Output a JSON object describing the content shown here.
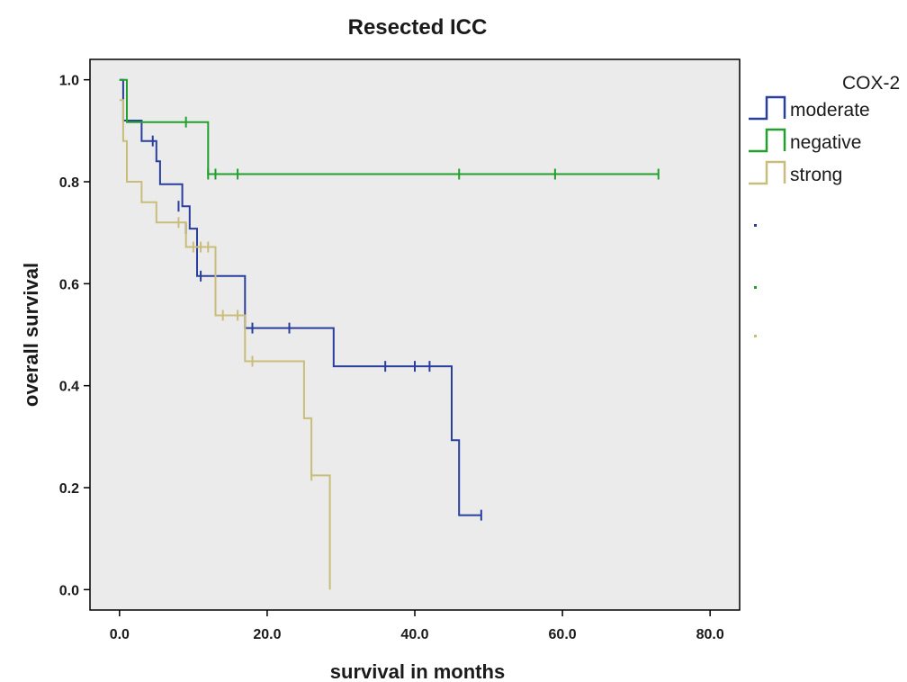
{
  "chart_data": {
    "type": "line",
    "subtype": "kaplan-meier-step",
    "title": "Resected ICC",
    "xlabel": "survival in months",
    "ylabel": "overall survival",
    "xlim": [
      -4,
      84
    ],
    "ylim": [
      -0.04,
      1.04
    ],
    "x_ticks": [
      0,
      20,
      40,
      60,
      80
    ],
    "x_tick_labels": [
      "0.0",
      "20.0",
      "40.0",
      "60.0",
      "80.0"
    ],
    "y_ticks": [
      0,
      0.2,
      0.4,
      0.6,
      0.8,
      1.0
    ],
    "y_tick_labels": [
      "0.0",
      "0.2",
      "0.4",
      "0.6",
      "0.8",
      "1.0"
    ],
    "grid": false,
    "plot_background": "#ebebeb",
    "legend": {
      "title": "COX-2",
      "placement": "right"
    },
    "series": [
      {
        "name": "moderate",
        "color": "#2a3e9c",
        "steps": [
          [
            0,
            1.0
          ],
          [
            0.5,
            0.92
          ],
          [
            3,
            0.88
          ],
          [
            5,
            0.84
          ],
          [
            5.5,
            0.795
          ],
          [
            8.5,
            0.752
          ],
          [
            9.5,
            0.708
          ],
          [
            10.5,
            0.615
          ],
          [
            17,
            0.513
          ],
          [
            29,
            0.438
          ],
          [
            45,
            0.293
          ],
          [
            46,
            0.146
          ],
          [
            49,
            0.146
          ]
        ],
        "censored": [
          [
            4.5,
            0.88
          ],
          [
            8,
            0.752
          ],
          [
            9,
            0.708
          ],
          [
            11,
            0.615
          ],
          [
            18,
            0.513
          ],
          [
            23,
            0.513
          ],
          [
            36,
            0.438
          ],
          [
            40,
            0.438
          ],
          [
            42,
            0.438
          ],
          [
            49,
            0.146
          ]
        ]
      },
      {
        "name": "negative",
        "color": "#22a02e",
        "steps": [
          [
            0,
            1.0
          ],
          [
            1,
            0.917
          ],
          [
            12,
            0.815
          ],
          [
            73,
            0.815
          ]
        ],
        "censored": [
          [
            9,
            0.917
          ],
          [
            12,
            0.815
          ],
          [
            13,
            0.815
          ],
          [
            16,
            0.815
          ],
          [
            46,
            0.815
          ],
          [
            59,
            0.815
          ],
          [
            73,
            0.815
          ]
        ]
      },
      {
        "name": "strong",
        "color": "#c8bd7b",
        "steps": [
          [
            0,
            0.96
          ],
          [
            0.5,
            0.88
          ],
          [
            1,
            0.8
          ],
          [
            3,
            0.76
          ],
          [
            5,
            0.72
          ],
          [
            8,
            0.72
          ],
          [
            9,
            0.672
          ],
          [
            13,
            0.538
          ],
          [
            17,
            0.448
          ],
          [
            25,
            0.336
          ],
          [
            26,
            0.224
          ],
          [
            28.5,
            0.0
          ]
        ],
        "censored": [
          [
            8,
            0.72
          ],
          [
            10,
            0.672
          ],
          [
            11,
            0.672
          ],
          [
            12,
            0.672
          ],
          [
            14,
            0.538
          ],
          [
            16,
            0.538
          ],
          [
            18,
            0.448
          ],
          [
            26,
            0.224
          ]
        ]
      }
    ]
  }
}
